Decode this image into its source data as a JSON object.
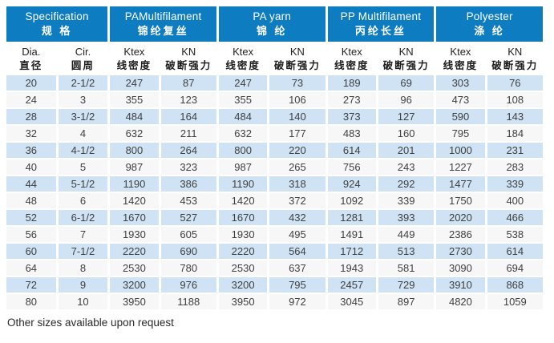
{
  "colors": {
    "header_blue": "#0d7cc1",
    "row_blue": "#cfe3f4",
    "row_plain": "#f7f7f7",
    "header_text": "#ffffff",
    "body_text": "#3f3f3f"
  },
  "table": {
    "groups": [
      {
        "en": "Specification",
        "cn": "规 格"
      },
      {
        "en": "PAMultifilament",
        "cn": "锦纶复丝"
      },
      {
        "en": "PA yarn",
        "cn": "锦 纶"
      },
      {
        "en": "PP Multifilament",
        "cn": "丙纶长丝"
      },
      {
        "en": "Polyester",
        "cn": "涤 纶"
      }
    ],
    "columns": [
      {
        "en": "Dia.",
        "cn": "直径"
      },
      {
        "en": "Cir.",
        "cn": "圆周"
      },
      {
        "en": "Ktex",
        "cn": "线密度"
      },
      {
        "en": "KN",
        "cn": "破断强力"
      },
      {
        "en": "Ktex",
        "cn": "线密度"
      },
      {
        "en": "KN",
        "cn": "破断强力"
      },
      {
        "en": "Ktex",
        "cn": "线密度"
      },
      {
        "en": "KN",
        "cn": "破断强力"
      },
      {
        "en": "Ktex",
        "cn": "线密度"
      },
      {
        "en": "KN",
        "cn": "破断强力"
      }
    ],
    "rows": [
      [
        "20",
        "2-1/2",
        "247",
        "87",
        "247",
        "73",
        "189",
        "69",
        "303",
        "76"
      ],
      [
        "24",
        "3",
        "355",
        "123",
        "355",
        "106",
        "273",
        "96",
        "473",
        "108"
      ],
      [
        "28",
        "3-1/2",
        "484",
        "164",
        "484",
        "140",
        "373",
        "127",
        "590",
        "143"
      ],
      [
        "32",
        "4",
        "632",
        "211",
        "632",
        "177",
        "483",
        "160",
        "795",
        "184"
      ],
      [
        "36",
        "4-1/2",
        "800",
        "264",
        "800",
        "220",
        "614",
        "201",
        "1000",
        "231"
      ],
      [
        "40",
        "5",
        "987",
        "323",
        "987",
        "265",
        "756",
        "243",
        "1227",
        "283"
      ],
      [
        "44",
        "5-1/2",
        "1190",
        "386",
        "1190",
        "318",
        "924",
        "292",
        "1477",
        "339"
      ],
      [
        "48",
        "6",
        "1420",
        "453",
        "1420",
        "372",
        "1092",
        "339",
        "1750",
        "400"
      ],
      [
        "52",
        "6-1/2",
        "1670",
        "527",
        "1670",
        "432",
        "1281",
        "393",
        "2020",
        "466"
      ],
      [
        "56",
        "7",
        "1930",
        "605",
        "1930",
        "495",
        "1491",
        "449",
        "2386",
        "538"
      ],
      [
        "60",
        "7-1/2",
        "2220",
        "690",
        "2220",
        "564",
        "1712",
        "513",
        "2730",
        "614"
      ],
      [
        "64",
        "8",
        "2530",
        "780",
        "2530",
        "637",
        "1943",
        "581",
        "3090",
        "694"
      ],
      [
        "72",
        "9",
        "3200",
        "976",
        "3200",
        "795",
        "2457",
        "729",
        "3910",
        "868"
      ],
      [
        "80",
        "10",
        "3950",
        "1188",
        "3950",
        "972",
        "3045",
        "897",
        "4820",
        "1059"
      ]
    ]
  },
  "footer": {
    "note": "Other sizes available upon request"
  }
}
